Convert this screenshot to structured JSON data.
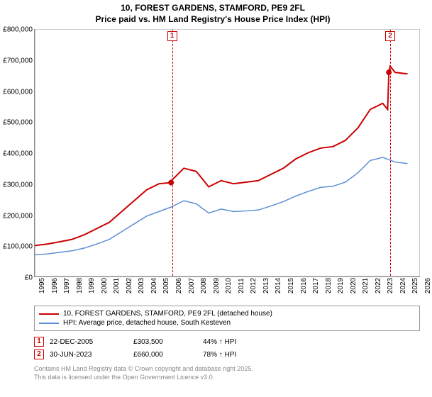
{
  "title": {
    "line1": "10, FOREST GARDENS, STAMFORD, PE9 2FL",
    "line2": "Price paid vs. HM Land Registry's House Price Index (HPI)"
  },
  "chart": {
    "type": "line",
    "background_color": "#ffffff",
    "grid_color": "#eeeeee",
    "axis_color": "#888888",
    "title_fontsize": 12,
    "tick_fontsize": 10,
    "x": {
      "min": 1995,
      "max": 2026,
      "ticks": [
        1995,
        1996,
        1997,
        1998,
        1999,
        2000,
        2001,
        2002,
        2003,
        2004,
        2005,
        2006,
        2007,
        2008,
        2009,
        2010,
        2011,
        2012,
        2013,
        2014,
        2015,
        2016,
        2017,
        2018,
        2019,
        2020,
        2021,
        2022,
        2023,
        2024,
        2025,
        2026
      ]
    },
    "y": {
      "min": 0,
      "max": 800000,
      "ticks": [
        0,
        100000,
        200000,
        300000,
        400000,
        500000,
        600000,
        700000,
        800000
      ],
      "tick_labels": [
        "£0",
        "£100,000",
        "£200,000",
        "£300,000",
        "£400,000",
        "£500,000",
        "£600,000",
        "£700,000",
        "£800,000"
      ]
    },
    "series": [
      {
        "id": "property",
        "label": "10, FOREST GARDENS, STAMFORD, PE9 2FL (detached house)",
        "color": "#cc0000",
        "line_width": 2,
        "data": [
          [
            1995,
            100000
          ],
          [
            1996,
            105000
          ],
          [
            1997,
            112000
          ],
          [
            1998,
            120000
          ],
          [
            1999,
            135000
          ],
          [
            2000,
            155000
          ],
          [
            2001,
            175000
          ],
          [
            2002,
            210000
          ],
          [
            2003,
            245000
          ],
          [
            2004,
            280000
          ],
          [
            2005,
            300000
          ],
          [
            2005.97,
            303500
          ],
          [
            2006,
            310000
          ],
          [
            2007,
            350000
          ],
          [
            2008,
            340000
          ],
          [
            2009,
            290000
          ],
          [
            2010,
            310000
          ],
          [
            2011,
            300000
          ],
          [
            2012,
            305000
          ],
          [
            2013,
            310000
          ],
          [
            2014,
            330000
          ],
          [
            2015,
            350000
          ],
          [
            2016,
            380000
          ],
          [
            2017,
            400000
          ],
          [
            2018,
            415000
          ],
          [
            2019,
            420000
          ],
          [
            2020,
            440000
          ],
          [
            2021,
            480000
          ],
          [
            2022,
            540000
          ],
          [
            2023,
            560000
          ],
          [
            2023.4,
            540000
          ],
          [
            2023.5,
            660000
          ],
          [
            2023.6,
            680000
          ],
          [
            2024,
            660000
          ],
          [
            2025,
            655000
          ]
        ]
      },
      {
        "id": "hpi",
        "label": "HPI: Average price, detached house, South Kesteven",
        "color": "#5b8fd6",
        "line_width": 1.5,
        "data": [
          [
            1995,
            70000
          ],
          [
            1996,
            73000
          ],
          [
            1997,
            78000
          ],
          [
            1998,
            83000
          ],
          [
            1999,
            92000
          ],
          [
            2000,
            105000
          ],
          [
            2001,
            120000
          ],
          [
            2002,
            145000
          ],
          [
            2003,
            170000
          ],
          [
            2004,
            195000
          ],
          [
            2005,
            210000
          ],
          [
            2006,
            225000
          ],
          [
            2007,
            245000
          ],
          [
            2008,
            235000
          ],
          [
            2009,
            205000
          ],
          [
            2010,
            218000
          ],
          [
            2011,
            210000
          ],
          [
            2012,
            212000
          ],
          [
            2013,
            215000
          ],
          [
            2014,
            228000
          ],
          [
            2015,
            242000
          ],
          [
            2016,
            260000
          ],
          [
            2017,
            275000
          ],
          [
            2018,
            288000
          ],
          [
            2019,
            292000
          ],
          [
            2020,
            305000
          ],
          [
            2021,
            335000
          ],
          [
            2022,
            375000
          ],
          [
            2023,
            385000
          ],
          [
            2024,
            370000
          ],
          [
            2025,
            365000
          ]
        ]
      }
    ],
    "sale_markers": [
      {
        "n": "1",
        "year": 2005.97,
        "price": 303500,
        "color": "#cc0000"
      },
      {
        "n": "2",
        "year": 2023.5,
        "price": 660000,
        "color": "#cc0000"
      }
    ]
  },
  "legend": {
    "items": [
      {
        "color": "#cc0000",
        "label": "10, FOREST GARDENS, STAMFORD, PE9 2FL (detached house)"
      },
      {
        "color": "#5b8fd6",
        "label": "HPI: Average price, detached house, South Kesteven"
      }
    ]
  },
  "sales": [
    {
      "n": "1",
      "color": "#cc0000",
      "date": "22-DEC-2005",
      "price": "£303,500",
      "vs_hpi": "44% ↑ HPI"
    },
    {
      "n": "2",
      "color": "#cc0000",
      "date": "30-JUN-2023",
      "price": "£660,000",
      "vs_hpi": "78% ↑ HPI"
    }
  ],
  "footer": {
    "line1": "Contains HM Land Registry data © Crown copyright and database right 2025.",
    "line2": "This data is licensed under the Open Government Licence v3.0."
  }
}
